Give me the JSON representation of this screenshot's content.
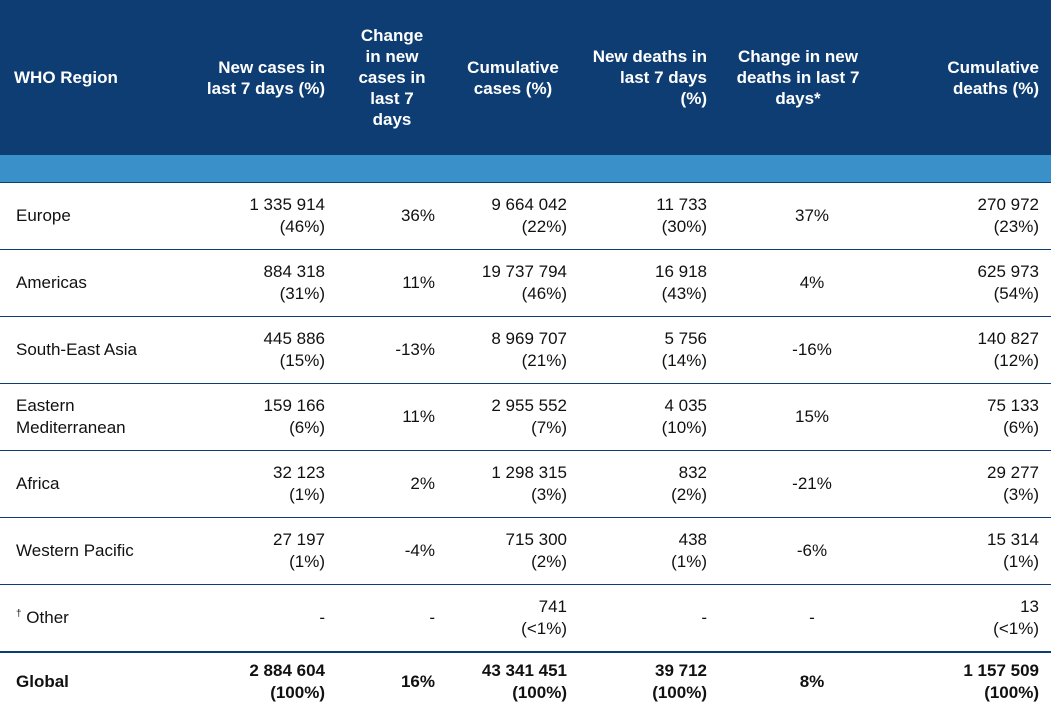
{
  "header": {
    "region": "WHO Region",
    "new_cases": "New cases in last 7 days (%)",
    "change_cases": "Change in new cases in last 7 days",
    "cumulative_cases": "Cumulative cases (%)",
    "new_deaths": "New deaths in last 7 days (%)",
    "change_deaths": "Change in new deaths in last 7 days*",
    "cumulative_deaths": "Cumulative deaths (%)"
  },
  "rows": [
    {
      "region": "Europe",
      "new_cases": "1 335 914",
      "new_cases_pct": "(46%)",
      "change_cases": "36%",
      "cum_cases": "9 664 042",
      "cum_cases_pct": "(22%)",
      "new_deaths": "11 733",
      "new_deaths_pct": "(30%)",
      "change_deaths": "37%",
      "cum_deaths": "270 972",
      "cum_deaths_pct": "(23%)"
    },
    {
      "region": "Americas",
      "new_cases": "884 318",
      "new_cases_pct": "(31%)",
      "change_cases": "11%",
      "cum_cases": "19 737 794",
      "cum_cases_pct": "(46%)",
      "new_deaths": "16 918",
      "new_deaths_pct": "(43%)",
      "change_deaths": "4%",
      "cum_deaths": "625 973",
      "cum_deaths_pct": "(54%)"
    },
    {
      "region": "South-East Asia",
      "new_cases": "445 886",
      "new_cases_pct": "(15%)",
      "change_cases": "-13%",
      "cum_cases": "8 969 707",
      "cum_cases_pct": "(21%)",
      "new_deaths": "5 756",
      "new_deaths_pct": "(14%)",
      "change_deaths": "-16%",
      "cum_deaths": "140 827",
      "cum_deaths_pct": "(12%)"
    },
    {
      "region": "Eastern Mediterranean",
      "new_cases": "159 166",
      "new_cases_pct": "(6%)",
      "change_cases": "11%",
      "cum_cases": "2 955 552",
      "cum_cases_pct": "(7%)",
      "new_deaths": "4 035",
      "new_deaths_pct": "(10%)",
      "change_deaths": "15%",
      "cum_deaths": "75 133",
      "cum_deaths_pct": "(6%)"
    },
    {
      "region": "Africa",
      "new_cases": "32 123",
      "new_cases_pct": "(1%)",
      "change_cases": "2%",
      "cum_cases": "1 298 315",
      "cum_cases_pct": "(3%)",
      "new_deaths": "832",
      "new_deaths_pct": "(2%)",
      "change_deaths": "-21%",
      "cum_deaths": "29 277",
      "cum_deaths_pct": "(3%)"
    },
    {
      "region": "Western Pacific",
      "new_cases": "27 197",
      "new_cases_pct": "(1%)",
      "change_cases": "-4%",
      "cum_cases": "715 300",
      "cum_cases_pct": "(2%)",
      "new_deaths": "438",
      "new_deaths_pct": "(1%)",
      "change_deaths": "-6%",
      "cum_deaths": "15 314",
      "cum_deaths_pct": "(1%)"
    }
  ],
  "other": {
    "marker": "†",
    "region": "Other",
    "new_cases": "-",
    "change_cases": "-",
    "cum_cases": "741",
    "cum_cases_pct": "(<1%)",
    "new_deaths": "-",
    "change_deaths": "-",
    "cum_deaths": "13",
    "cum_deaths_pct": "(<1%)"
  },
  "global": {
    "region": "Global",
    "new_cases": "2 884 604",
    "new_cases_pct": "(100%)",
    "change_cases": "16%",
    "cum_cases": "43 341 451",
    "cum_cases_pct": "(100%)",
    "new_deaths": "39 712",
    "new_deaths_pct": "(100%)",
    "change_deaths": "8%",
    "cum_deaths": "1 157 509",
    "cum_deaths_pct": "(100%)"
  },
  "colors": {
    "header_bg": "#0e3d73",
    "band_bg": "#3a90c8"
  }
}
